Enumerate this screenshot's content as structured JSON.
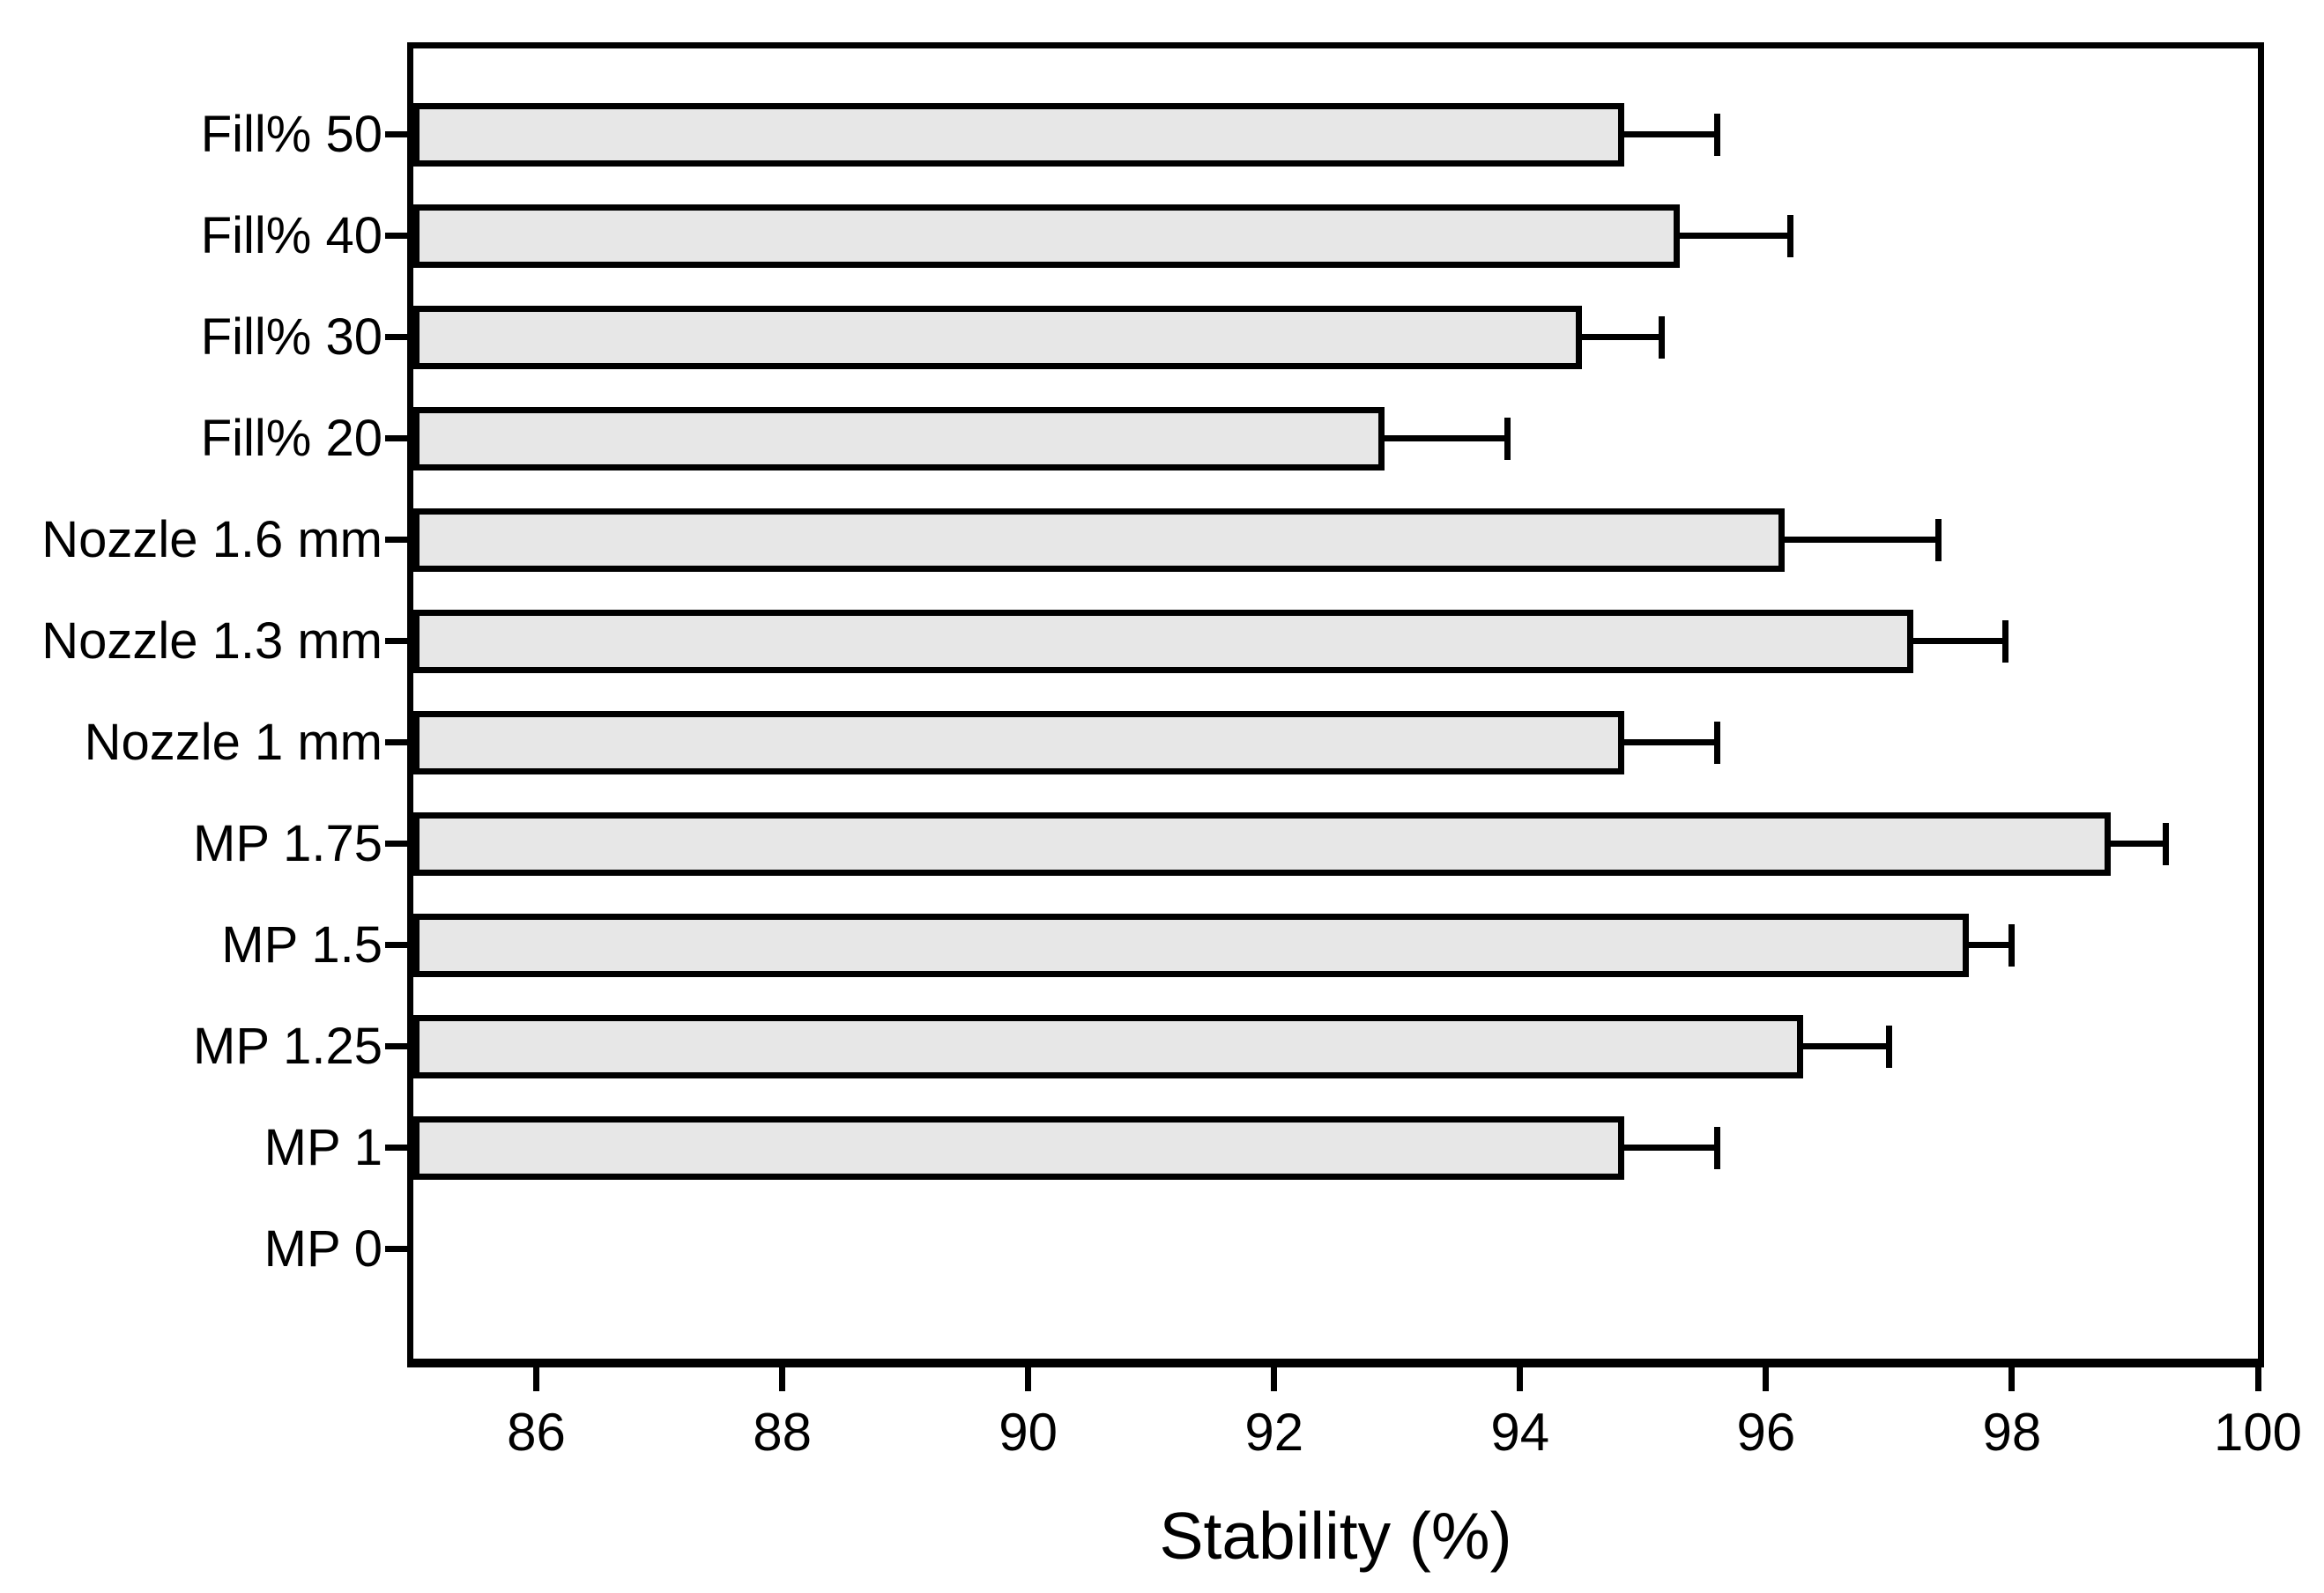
{
  "figure": {
    "background_color": "#ffffff",
    "frame_color": "#000000",
    "bar_fill_color": "#e7e7e7",
    "bar_border_color": "#000000",
    "text_color": "#000000"
  },
  "chart_data": {
    "type": "bar",
    "orientation": "horizontal",
    "title": "",
    "xlabel": "Stability (%)",
    "ylabel": "",
    "xlim": [
      85,
      100
    ],
    "x_ticks": [
      86,
      88,
      90,
      92,
      94,
      96,
      98,
      100
    ],
    "grid": false,
    "legend": null,
    "error_bars": "upper only, capped",
    "categories_top_to_bottom": [
      "Fill% 50",
      "Fill% 40",
      "Fill% 30",
      "Fill% 20",
      "Nozzle 1.6 mm",
      "Nozzle 1.3 mm",
      "Nozzle 1 mm",
      "MP 1.75",
      "MP 1.5",
      "MP 1.25",
      "MP 1",
      "MP 0"
    ],
    "series": [
      {
        "name": "Stability (%)",
        "values": [
          94.85,
          95.3,
          94.5,
          92.9,
          96.15,
          97.2,
          94.85,
          98.8,
          97.65,
          96.3,
          94.85,
          0
        ],
        "upper_errors": [
          0.75,
          0.9,
          0.65,
          1.0,
          1.25,
          0.75,
          0.75,
          0.45,
          0.35,
          0.7,
          0.75,
          0
        ]
      }
    ],
    "notes": "MP 0 row has no visible bar (value below axis minimum of 85)."
  }
}
